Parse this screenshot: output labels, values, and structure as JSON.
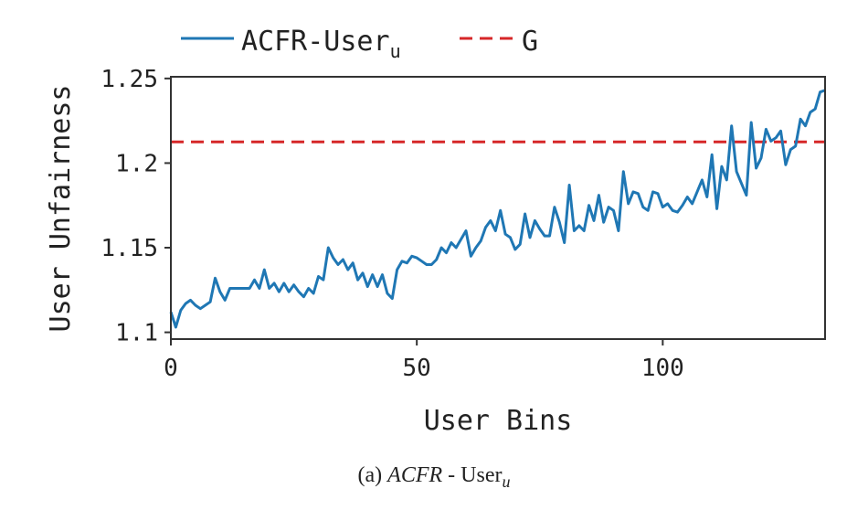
{
  "chart_data": {
    "type": "line",
    "title": "",
    "xlabel": "User Bins",
    "ylabel": "User Unfairness",
    "xlim": [
      0,
      133
    ],
    "ylim": [
      1.096,
      1.251
    ],
    "xticks": [
      0,
      50,
      100
    ],
    "xtick_labels": [
      "0",
      "50",
      "100"
    ],
    "yticks": [
      1.1,
      1.15,
      1.2,
      1.25
    ],
    "ytick_labels": [
      "1.1",
      "1.15",
      "1.2",
      "1.25"
    ],
    "grid": false,
    "legend_placement": "top-center-outside",
    "series": [
      {
        "name": "ACFR-User",
        "name_subscript": "u",
        "color": "#1f77b4",
        "style": "solid",
        "values": [
          1.112,
          1.103,
          1.113,
          1.117,
          1.119,
          1.116,
          1.114,
          1.116,
          1.118,
          1.132,
          1.124,
          1.119,
          1.126,
          1.126,
          1.126,
          1.126,
          1.126,
          1.131,
          1.126,
          1.137,
          1.126,
          1.129,
          1.124,
          1.129,
          1.124,
          1.128,
          1.124,
          1.121,
          1.126,
          1.123,
          1.133,
          1.131,
          1.15,
          1.144,
          1.14,
          1.143,
          1.137,
          1.141,
          1.131,
          1.135,
          1.127,
          1.134,
          1.127,
          1.134,
          1.123,
          1.12,
          1.137,
          1.142,
          1.141,
          1.145,
          1.144,
          1.142,
          1.14,
          1.14,
          1.143,
          1.15,
          1.147,
          1.153,
          1.15,
          1.155,
          1.16,
          1.145,
          1.15,
          1.154,
          1.162,
          1.166,
          1.16,
          1.172,
          1.158,
          1.156,
          1.149,
          1.152,
          1.17,
          1.156,
          1.166,
          1.161,
          1.157,
          1.157,
          1.174,
          1.165,
          1.153,
          1.187,
          1.16,
          1.163,
          1.16,
          1.175,
          1.166,
          1.181,
          1.165,
          1.174,
          1.172,
          1.16,
          1.195,
          1.176,
          1.183,
          1.182,
          1.174,
          1.172,
          1.183,
          1.182,
          1.174,
          1.176,
          1.172,
          1.171,
          1.175,
          1.18,
          1.176,
          1.183,
          1.19,
          1.18,
          1.205,
          1.173,
          1.198,
          1.19,
          1.222,
          1.195,
          1.188,
          1.181,
          1.224,
          1.197,
          1.203,
          1.22,
          1.213,
          1.215,
          1.219,
          1.199,
          1.208,
          1.21,
          1.226,
          1.222,
          1.23,
          1.232,
          1.242,
          1.243
        ]
      },
      {
        "name": "G",
        "color": "#d62728",
        "style": "dashed",
        "constant": 1.2125
      }
    ]
  },
  "caption": {
    "prefix": "(a) ",
    "method": "ACFR",
    "separator": " - ",
    "label": "User",
    "subscript": "u"
  }
}
